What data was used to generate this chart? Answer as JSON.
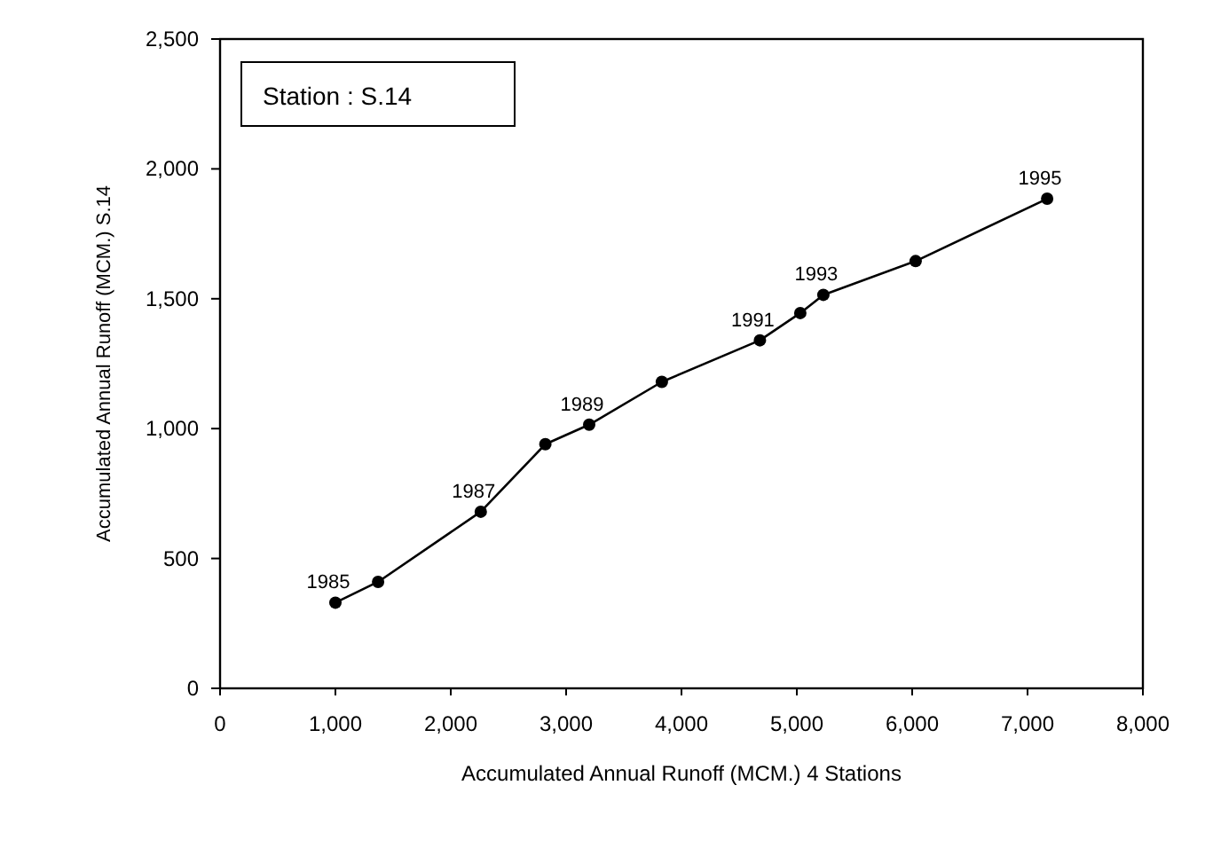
{
  "chart_data": {
    "type": "line",
    "xlabel": "Accumulated Annual Runoff (MCM.) 4 Stations",
    "ylabel": "Accumulated Annual Runoff (MCM.) S.14",
    "x": [
      1000,
      1370,
      2260,
      2820,
      3200,
      3830,
      4680,
      5030,
      5230,
      6030,
      7170
    ],
    "series": [
      {
        "color": "#000000",
        "values": [
          330,
          410,
          680,
          940,
          1015,
          1180,
          1340,
          1445,
          1515,
          1645,
          1885
        ]
      }
    ],
    "xlim": [
      0,
      8000
    ],
    "xticks": [
      {
        "value": 0,
        "label": "0"
      },
      {
        "value": 1000,
        "label": "1,000"
      },
      {
        "value": 2000,
        "label": "2,000"
      },
      {
        "value": 3000,
        "label": "3,000"
      },
      {
        "value": 4000,
        "label": "4,000"
      },
      {
        "value": 5000,
        "label": "5,000"
      },
      {
        "value": 6000,
        "label": "6,000"
      },
      {
        "value": 7000,
        "label": "7,000"
      },
      {
        "value": 8000,
        "label": "8,000"
      }
    ],
    "ylim": [
      0,
      2500
    ],
    "yticks": [
      {
        "value": 0,
        "label": "0"
      },
      {
        "value": 500,
        "label": "500"
      },
      {
        "value": 1000,
        "label": "1,000"
      },
      {
        "value": 1500,
        "label": "1,500"
      },
      {
        "value": 2000,
        "label": "2,000"
      },
      {
        "value": 2500,
        "label": "2,500"
      }
    ],
    "marker": "circle",
    "grid": false,
    "annotations": [
      "Station : S.14",
      {
        "text": "1985",
        "x": 1000,
        "y": 330
      },
      {
        "text": "1987",
        "x": 2260,
        "y": 680
      },
      {
        "text": "1989",
        "x": 3200,
        "y": 1015
      },
      {
        "text": "1991",
        "x": 4680,
        "y": 1340
      },
      {
        "text": "1993",
        "x": 5230,
        "y": 1515
      },
      {
        "text": "1995",
        "x": 7170,
        "y": 1885
      }
    ]
  }
}
